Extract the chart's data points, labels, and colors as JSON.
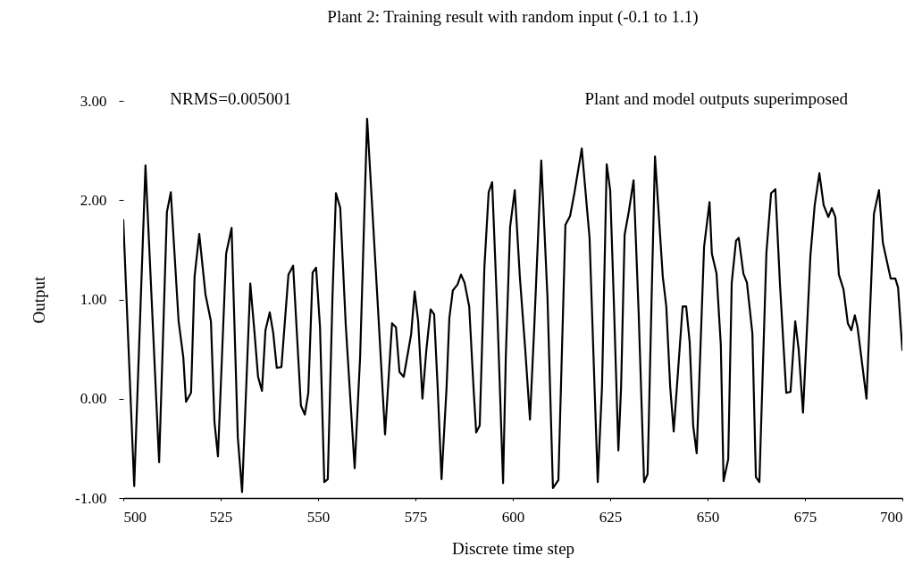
{
  "chart_data": {
    "type": "line",
    "title": "Plant 2: Training result with random input (-0.1 to 1.1)",
    "xlabel": "Discrete time step",
    "ylabel": "Output",
    "annotations": [
      "NRMS=0.005001",
      "Plant and model outputs superimposed"
    ],
    "xlim": [
      500,
      700
    ],
    "xticks": [
      500,
      525,
      550,
      575,
      600,
      625,
      650,
      675,
      700
    ],
    "ylim": [
      -1,
      3
    ],
    "yticks": [
      {
        "value": -1,
        "label": "-1.00"
      },
      {
        "value": 0,
        "label": "0.00"
      },
      {
        "value": 1,
        "label": "1.00"
      },
      {
        "value": 2,
        "label": "2.00"
      },
      {
        "value": 3,
        "label": "3.00"
      }
    ],
    "grid": false,
    "marker": "none",
    "line_style": "solid",
    "series": [
      {
        "color": "#000000",
        "x": [
          500,
          502.8,
          505.7,
          509.2,
          511.2,
          512.2,
          514.2,
          515.4,
          516.1,
          517.4,
          518.3,
          519.5,
          521.1,
          522.5,
          523.4,
          524.3,
          526.4,
          527.8,
          529.4,
          530.5,
          532.6,
          533.7,
          534.6,
          535.6,
          536.5,
          537.6,
          538.5,
          539.4,
          540.6,
          542.4,
          543.6,
          545.6,
          546.6,
          547.5,
          548.6,
          549.5,
          550.5,
          551.6,
          552.5,
          553.7,
          554.6,
          555.7,
          557.1,
          559.4,
          560.8,
          562.6,
          565.4,
          567.2,
          569,
          570,
          570.9,
          572,
          573.9,
          574.8,
          575.7,
          576.8,
          577.8,
          578.9,
          579.8,
          580.7,
          581.7,
          583,
          583.7,
          584.6,
          585.8,
          586.7,
          587.6,
          588.8,
          589.9,
          590.6,
          591.5,
          592.7,
          593.8,
          594.7,
          596.1,
          597.5,
          598.2,
          599.3,
          600.5,
          601.8,
          603.2,
          604.4,
          605.5,
          607.3,
          608.9,
          610.3,
          611.7,
          613.5,
          614.7,
          615.8,
          617.7,
          619.7,
          621.8,
          622.9,
          624.1,
          625,
          625.9,
          627.1,
          627.8,
          628.7,
          629.8,
          631,
          632.3,
          633.7,
          634.6,
          635.6,
          636.5,
          638.5,
          639.4,
          640.4,
          641.3,
          642.4,
          643.6,
          644.5,
          645.4,
          646.3,
          647.2,
          649.1,
          650.5,
          651.1,
          652.3,
          653.4,
          654.1,
          655.3,
          656.2,
          657.3,
          658,
          659.2,
          660.1,
          661.5,
          662.4,
          663.3,
          665.1,
          666.3,
          667.4,
          668.6,
          670.2,
          671.3,
          672.5,
          673.4,
          674.5,
          676.4,
          677.5,
          678.7,
          679.8,
          681,
          681.9,
          682.8,
          683.7,
          684.9,
          686,
          686.9,
          687.8,
          688.5,
          690.8,
          692.7,
          694,
          695,
          697,
          698.2,
          698.9,
          700
        ],
        "values": [
          1.8,
          -0.88,
          2.35,
          -0.64,
          1.88,
          2.08,
          0.78,
          0.42,
          -0.03,
          0.06,
          1.23,
          1.66,
          1.05,
          0.78,
          -0.23,
          -0.58,
          1.46,
          1.72,
          -0.39,
          -0.94,
          1.16,
          0.66,
          0.22,
          0.08,
          0.69,
          0.87,
          0.66,
          0.31,
          0.32,
          1.25,
          1.34,
          -0.07,
          -0.16,
          0.06,
          1.27,
          1.32,
          0.72,
          -0.84,
          -0.81,
          1.02,
          2.07,
          1.92,
          0.75,
          -0.7,
          0.42,
          2.82,
          0.9,
          -0.36,
          0.76,
          0.72,
          0.27,
          0.22,
          0.65,
          1.08,
          0.78,
          0.0,
          0.49,
          0.9,
          0.85,
          0.12,
          -0.81,
          0.12,
          0.81,
          1.09,
          1.15,
          1.25,
          1.17,
          0.93,
          0.12,
          -0.34,
          -0.27,
          1.32,
          2.08,
          2.18,
          0.78,
          -0.85,
          0.42,
          1.73,
          2.1,
          1.23,
          0.49,
          -0.21,
          0.72,
          2.4,
          1.02,
          -0.9,
          -0.82,
          1.75,
          1.84,
          2.07,
          2.52,
          1.62,
          -0.84,
          0.12,
          2.36,
          2.1,
          1.02,
          -0.52,
          0.12,
          1.65,
          1.89,
          2.2,
          0.87,
          -0.84,
          -0.76,
          0.96,
          2.44,
          1.23,
          0.93,
          0.12,
          -0.33,
          0.27,
          0.93,
          0.93,
          0.57,
          -0.27,
          -0.55,
          1.53,
          1.98,
          1.46,
          1.26,
          0.54,
          -0.83,
          -0.61,
          1.17,
          1.59,
          1.62,
          1.26,
          1.17,
          0.66,
          -0.79,
          -0.84,
          1.47,
          2.07,
          2.11,
          1.14,
          0.06,
          0.07,
          0.78,
          0.49,
          -0.14,
          1.44,
          1.95,
          2.27,
          1.95,
          1.83,
          1.92,
          1.83,
          1.25,
          1.1,
          0.76,
          0.69,
          0.84,
          0.72,
          0.0,
          1.86,
          2.1,
          1.57,
          1.21,
          1.21,
          1.12,
          0.49
        ]
      }
    ]
  }
}
